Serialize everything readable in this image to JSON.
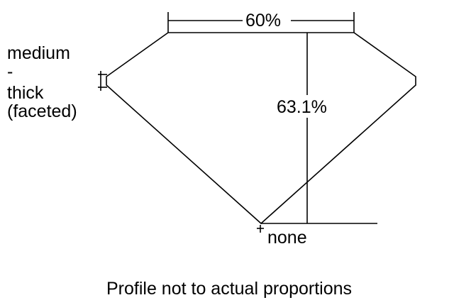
{
  "labels": {
    "table_width": "60%",
    "total_depth": "63.1%",
    "girdle": [
      "medium",
      "-",
      "thick",
      "(faceted)"
    ],
    "culet": "none",
    "footnote": "Profile not to actual proportions"
  },
  "colors": {
    "line": "#000000",
    "background": "#ffffff"
  }
}
